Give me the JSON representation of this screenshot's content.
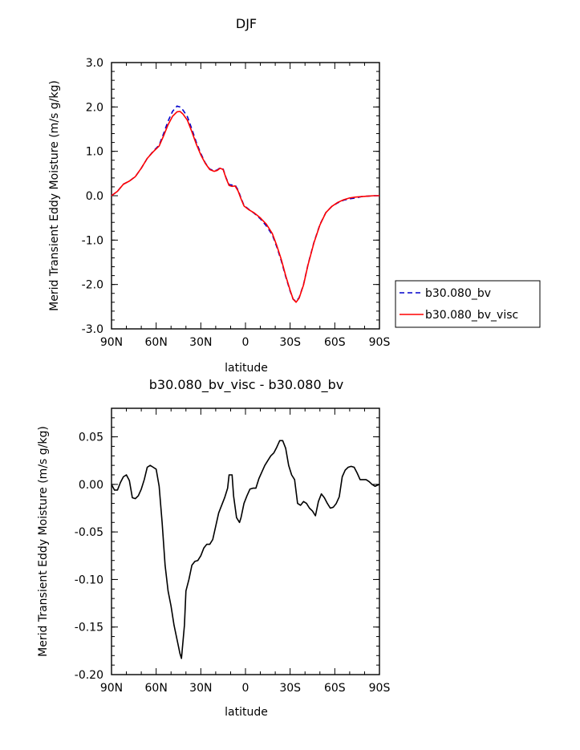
{
  "chart_data": [
    {
      "type": "line",
      "title": "DJF",
      "xlabel": "latitude",
      "ylabel": "Merid Transient Eddy Moisture (m/s g/kg)",
      "x_ticks": [
        {
          "value": 90,
          "label": "90N"
        },
        {
          "value": 60,
          "label": "60N"
        },
        {
          "value": 30,
          "label": "30N"
        },
        {
          "value": 0,
          "label": "0"
        },
        {
          "value": -30,
          "label": "30S"
        },
        {
          "value": -60,
          "label": "60S"
        },
        {
          "value": -90,
          "label": "90S"
        }
      ],
      "xlim": [
        90,
        -90
      ],
      "ylim": [
        -3.0,
        3.0
      ],
      "y_ticks": [
        {
          "value": 3.0,
          "label": "3.0"
        },
        {
          "value": 2.0,
          "label": "2.0"
        },
        {
          "value": 1.0,
          "label": "1.0"
        },
        {
          "value": 0.0,
          "label": "0.0"
        },
        {
          "value": -1.0,
          "label": "-1.0"
        },
        {
          "value": -2.0,
          "label": "-2.0"
        },
        {
          "value": -3.0,
          "label": "-3.0"
        }
      ],
      "legend_position": "right",
      "series": [
        {
          "name": "b30.080_bv",
          "color": "#0000cc",
          "dash": "dashed",
          "points": [
            [
              90,
              0.0
            ],
            [
              86,
              0.1
            ],
            [
              82,
              0.26
            ],
            [
              78,
              0.33
            ],
            [
              74,
              0.43
            ],
            [
              70,
              0.62
            ],
            [
              66,
              0.84
            ],
            [
              62,
              1.0
            ],
            [
              58,
              1.14
            ],
            [
              55,
              1.4
            ],
            [
              52,
              1.68
            ],
            [
              49,
              1.9
            ],
            [
              46,
              2.02
            ],
            [
              44,
              2.0
            ],
            [
              42,
              1.93
            ],
            [
              39,
              1.78
            ],
            [
              36,
              1.5
            ],
            [
              33,
              1.2
            ],
            [
              30,
              0.95
            ],
            [
              27,
              0.74
            ],
            [
              24,
              0.6
            ],
            [
              21,
              0.56
            ],
            [
              19,
              0.58
            ],
            [
              17,
              0.63
            ],
            [
              15,
              0.6
            ],
            [
              13,
              0.4
            ],
            [
              11,
              0.25
            ],
            [
              9,
              0.24
            ],
            [
              7,
              0.24
            ],
            [
              5,
              0.13
            ],
            [
              3,
              -0.05
            ],
            [
              1,
              -0.22
            ],
            [
              -2,
              -0.3
            ],
            [
              -6,
              -0.4
            ],
            [
              -10,
              -0.52
            ],
            [
              -14,
              -0.68
            ],
            [
              -18,
              -0.88
            ],
            [
              -21,
              -1.15
            ],
            [
              -24,
              -1.46
            ],
            [
              -27,
              -1.82
            ],
            [
              -30,
              -2.15
            ],
            [
              -32,
              -2.33
            ],
            [
              -34,
              -2.38
            ],
            [
              -36,
              -2.3
            ],
            [
              -39,
              -2.0
            ],
            [
              -42,
              -1.55
            ],
            [
              -46,
              -1.05
            ],
            [
              -50,
              -0.65
            ],
            [
              -54,
              -0.38
            ],
            [
              -58,
              -0.24
            ],
            [
              -62,
              -0.16
            ],
            [
              -66,
              -0.1
            ],
            [
              -70,
              -0.07
            ],
            [
              -74,
              -0.05
            ],
            [
              -78,
              -0.02
            ],
            [
              -82,
              -0.01
            ],
            [
              -86,
              0.0
            ],
            [
              -90,
              0.0
            ]
          ]
        },
        {
          "name": "b30.080_bv_visc",
          "color": "#ff0000",
          "dash": "solid",
          "points": [
            [
              90,
              0.0
            ],
            [
              86,
              0.1
            ],
            [
              82,
              0.26
            ],
            [
              78,
              0.33
            ],
            [
              74,
              0.43
            ],
            [
              70,
              0.62
            ],
            [
              66,
              0.84
            ],
            [
              62,
              0.99
            ],
            [
              58,
              1.12
            ],
            [
              55,
              1.35
            ],
            [
              52,
              1.6
            ],
            [
              49,
              1.79
            ],
            [
              46,
              1.89
            ],
            [
              44,
              1.9
            ],
            [
              42,
              1.84
            ],
            [
              39,
              1.7
            ],
            [
              36,
              1.44
            ],
            [
              33,
              1.16
            ],
            [
              30,
              0.92
            ],
            [
              27,
              0.73
            ],
            [
              24,
              0.59
            ],
            [
              21,
              0.55
            ],
            [
              19,
              0.57
            ],
            [
              17,
              0.62
            ],
            [
              15,
              0.59
            ],
            [
              13,
              0.39
            ],
            [
              11,
              0.23
            ],
            [
              9,
              0.21
            ],
            [
              7,
              0.22
            ],
            [
              5,
              0.11
            ],
            [
              3,
              -0.07
            ],
            [
              1,
              -0.23
            ],
            [
              -2,
              -0.31
            ],
            [
              -6,
              -0.39
            ],
            [
              -10,
              -0.5
            ],
            [
              -14,
              -0.64
            ],
            [
              -18,
              -0.85
            ],
            [
              -21,
              -1.12
            ],
            [
              -24,
              -1.43
            ],
            [
              -27,
              -1.8
            ],
            [
              -30,
              -2.13
            ],
            [
              -32,
              -2.33
            ],
            [
              -34,
              -2.4
            ],
            [
              -36,
              -2.31
            ],
            [
              -39,
              -2.01
            ],
            [
              -42,
              -1.56
            ],
            [
              -46,
              -1.06
            ],
            [
              -50,
              -0.66
            ],
            [
              -54,
              -0.38
            ],
            [
              -58,
              -0.24
            ],
            [
              -62,
              -0.15
            ],
            [
              -66,
              -0.09
            ],
            [
              -70,
              -0.05
            ],
            [
              -74,
              -0.03
            ],
            [
              -78,
              -0.02
            ],
            [
              -82,
              -0.01
            ],
            [
              -86,
              0.0
            ],
            [
              -90,
              0.0
            ]
          ]
        }
      ]
    },
    {
      "type": "line",
      "title": "b30.080_bv_visc - b30.080_bv",
      "xlabel": "latitude",
      "ylabel": "Merid Transient Eddy Moisture (m/s g/kg)",
      "x_ticks": [
        {
          "value": 90,
          "label": "90N"
        },
        {
          "value": 60,
          "label": "60N"
        },
        {
          "value": 30,
          "label": "30N"
        },
        {
          "value": 0,
          "label": "0"
        },
        {
          "value": -30,
          "label": "30S"
        },
        {
          "value": -60,
          "label": "60S"
        },
        {
          "value": -90,
          "label": "90S"
        }
      ],
      "xlim": [
        90,
        -90
      ],
      "ylim": [
        -0.2,
        0.08
      ],
      "y_ticks": [
        {
          "value": 0.05,
          "label": "0.05"
        },
        {
          "value": 0.0,
          "label": "0.00"
        },
        {
          "value": -0.05,
          "label": "-0.05"
        },
        {
          "value": -0.1,
          "label": "-0.10"
        },
        {
          "value": -0.15,
          "label": "-0.15"
        },
        {
          "value": -0.2,
          "label": "-0.20"
        }
      ],
      "series": [
        {
          "name": "",
          "color": "#000000",
          "dash": "solid",
          "points": [
            [
              90,
              0.0
            ],
            [
              88,
              -0.006
            ],
            [
              86,
              -0.006
            ],
            [
              84,
              0.002
            ],
            [
              82,
              0.008
            ],
            [
              80,
              0.01
            ],
            [
              78,
              0.004
            ],
            [
              76,
              -0.014
            ],
            [
              74,
              -0.015
            ],
            [
              72,
              -0.012
            ],
            [
              70,
              -0.005
            ],
            [
              68,
              0.005
            ],
            [
              66,
              0.018
            ],
            [
              64,
              0.02
            ],
            [
              62,
              0.018
            ],
            [
              60,
              0.016
            ],
            [
              58,
              -0.002
            ],
            [
              56,
              -0.04
            ],
            [
              54,
              -0.085
            ],
            [
              52,
              -0.112
            ],
            [
              50,
              -0.128
            ],
            [
              48,
              -0.148
            ],
            [
              46,
              -0.163
            ],
            [
              44,
              -0.178
            ],
            [
              43,
              -0.183
            ],
            [
              41,
              -0.148
            ],
            [
              40,
              -0.112
            ],
            [
              38,
              -0.1
            ],
            [
              36,
              -0.085
            ],
            [
              34,
              -0.081
            ],
            [
              32,
              -0.08
            ],
            [
              30,
              -0.075
            ],
            [
              28,
              -0.067
            ],
            [
              26,
              -0.063
            ],
            [
              24,
              -0.063
            ],
            [
              22,
              -0.058
            ],
            [
              20,
              -0.044
            ],
            [
              18,
              -0.03
            ],
            [
              16,
              -0.022
            ],
            [
              14,
              -0.014
            ],
            [
              12,
              -0.004
            ],
            [
              11,
              0.01
            ],
            [
              9,
              0.01
            ],
            [
              8,
              -0.012
            ],
            [
              6,
              -0.035
            ],
            [
              4,
              -0.04
            ],
            [
              3,
              -0.035
            ],
            [
              1,
              -0.02
            ],
            [
              -1,
              -0.012
            ],
            [
              -3,
              -0.005
            ],
            [
              -5,
              -0.004
            ],
            [
              -7,
              -0.004
            ],
            [
              -9,
              0.006
            ],
            [
              -11,
              0.013
            ],
            [
              -13,
              0.02
            ],
            [
              -15,
              0.025
            ],
            [
              -17,
              0.03
            ],
            [
              -19,
              0.033
            ],
            [
              -21,
              0.039
            ],
            [
              -23,
              0.046
            ],
            [
              -25,
              0.046
            ],
            [
              -27,
              0.038
            ],
            [
              -29,
              0.02
            ],
            [
              -31,
              0.01
            ],
            [
              -33,
              0.005
            ],
            [
              -35,
              -0.02
            ],
            [
              -37,
              -0.022
            ],
            [
              -39,
              -0.018
            ],
            [
              -41,
              -0.02
            ],
            [
              -43,
              -0.025
            ],
            [
              -45,
              -0.028
            ],
            [
              -47,
              -0.033
            ],
            [
              -49,
              -0.018
            ],
            [
              -51,
              -0.01
            ],
            [
              -53,
              -0.014
            ],
            [
              -55,
              -0.02
            ],
            [
              -57,
              -0.025
            ],
            [
              -59,
              -0.024
            ],
            [
              -61,
              -0.02
            ],
            [
              -63,
              -0.013
            ],
            [
              -65,
              0.008
            ],
            [
              -67,
              0.015
            ],
            [
              -69,
              0.018
            ],
            [
              -71,
              0.019
            ],
            [
              -73,
              0.018
            ],
            [
              -75,
              0.012
            ],
            [
              -77,
              0.005
            ],
            [
              -79,
              0.005
            ],
            [
              -81,
              0.005
            ],
            [
              -83,
              0.003
            ],
            [
              -85,
              0.0
            ],
            [
              -87,
              -0.002
            ],
            [
              -90,
              0.0
            ]
          ]
        }
      ]
    }
  ]
}
